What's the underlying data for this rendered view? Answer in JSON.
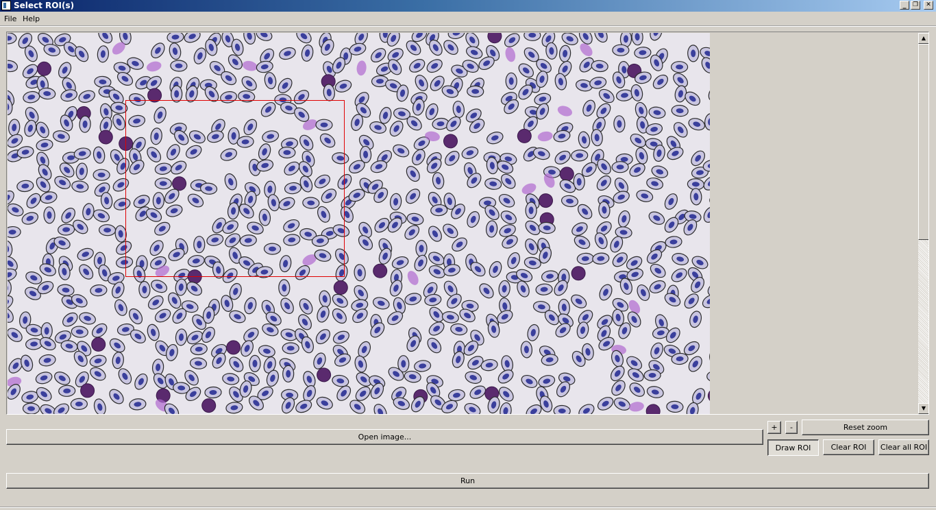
{
  "window": {
    "title": "Select ROI(s)"
  },
  "menu": {
    "items": [
      {
        "label": "File"
      },
      {
        "label": "Help"
      }
    ]
  },
  "window_controls": {
    "minimize": "_",
    "restore": "❐",
    "close": "✕"
  },
  "image_view": {
    "image_kind": "blood smear with elliptical nucleated erythrocytes",
    "roi_color": "#e00000",
    "cell_fill": "#3a3f9c",
    "cell_border": "#2b2b2b",
    "background": "#e8e5ec"
  },
  "scrollbar": {
    "up_arrow": "▲",
    "down_arrow": "▼"
  },
  "controls": {
    "zoom_in_label": "+",
    "zoom_out_label": "-",
    "reset_zoom_label": "Reset zoom",
    "open_image_label": "Open image...",
    "draw_roi_label": "Draw ROI",
    "clear_roi_label": "Clear ROI",
    "clear_all_roi_label": "Clear all ROI",
    "run_label": "Run"
  }
}
